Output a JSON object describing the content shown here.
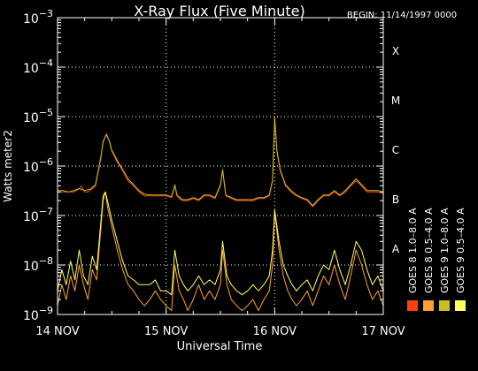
{
  "chart_data": {
    "type": "line",
    "title": "X-Ray Flux (Five Minute)",
    "begin_label": "BEGIN: 11/14/1997 0000",
    "xlabel": "Universal Time",
    "ylabel": "Watts meter2",
    "y_scale": "log",
    "ylim": [
      1e-09,
      0.001
    ],
    "xlim": [
      0,
      3
    ],
    "x_ticks": [
      {
        "value": 0,
        "label": "14 NOV"
      },
      {
        "value": 1,
        "label": "15 NOV"
      },
      {
        "value": 2,
        "label": "16 NOV"
      },
      {
        "value": 3,
        "label": "17 NOV"
      }
    ],
    "y_ticks": [
      {
        "exponent": -9,
        "base": "10",
        "sup": "−9"
      },
      {
        "exponent": -8,
        "base": "10",
        "sup": "−8"
      },
      {
        "exponent": -7,
        "base": "10",
        "sup": "−7"
      },
      {
        "exponent": -6,
        "base": "10",
        "sup": "−6"
      },
      {
        "exponent": -5,
        "base": "10",
        "sup": "−5"
      },
      {
        "exponent": -4,
        "base": "10",
        "sup": "−4"
      },
      {
        "exponent": -3,
        "base": "10",
        "sup": "−3"
      }
    ],
    "flare_classes": [
      {
        "label": "A",
        "exponent": -8
      },
      {
        "label": "B",
        "exponent": -7
      },
      {
        "label": "C",
        "exponent": -6
      },
      {
        "label": "M",
        "exponent": -5
      },
      {
        "label": "X",
        "exponent": -4
      }
    ],
    "grid": true,
    "legend_position": "right",
    "series": [
      {
        "name": "GOES 8 1.0–8.0 A",
        "color": "#ff4010",
        "x": [
          0.0,
          0.05,
          0.1,
          0.15,
          0.2,
          0.22,
          0.25,
          0.28,
          0.3,
          0.35,
          0.4,
          0.42,
          0.45,
          0.48,
          0.5,
          0.55,
          0.6,
          0.65,
          0.7,
          0.75,
          0.8,
          0.85,
          0.9,
          0.95,
          1.0,
          1.05,
          1.08,
          1.1,
          1.12,
          1.15,
          1.2,
          1.25,
          1.3,
          1.35,
          1.4,
          1.45,
          1.5,
          1.52,
          1.55,
          1.6,
          1.65,
          1.7,
          1.75,
          1.8,
          1.85,
          1.9,
          1.95,
          1.98,
          2.0,
          2.02,
          2.05,
          2.1,
          2.15,
          2.2,
          2.25,
          2.3,
          2.35,
          2.4,
          2.45,
          2.5,
          2.55,
          2.6,
          2.65,
          2.7,
          2.75,
          2.8,
          2.85,
          2.9,
          2.95,
          3.0
        ],
        "y": [
          3e-07,
          3e-07,
          3e-07,
          3e-07,
          3.5e-07,
          4e-07,
          3e-07,
          3e-07,
          3.2e-07,
          4e-07,
          1.5e-06,
          3e-06,
          4.5e-06,
          3e-06,
          2e-06,
          1.2e-06,
          8e-07,
          5e-07,
          4e-07,
          3e-07,
          2.5e-07,
          2.5e-07,
          2.5e-07,
          2.5e-07,
          2.5e-07,
          2.3e-07,
          4e-07,
          2.5e-07,
          2.2e-07,
          2e-07,
          2e-07,
          2.2e-07,
          2e-07,
          2.5e-07,
          2.5e-07,
          2.2e-07,
          4e-07,
          8e-07,
          2.5e-07,
          2.2e-07,
          2e-07,
          2e-07,
          2e-07,
          2e-07,
          2.2e-07,
          2.2e-07,
          2.5e-07,
          5e-07,
          1e-05,
          2e-06,
          8e-07,
          4e-07,
          3e-07,
          2.5e-07,
          2.2e-07,
          2e-07,
          1.5e-07,
          2e-07,
          2.5e-07,
          2.5e-07,
          3e-07,
          2.5e-07,
          3e-07,
          4e-07,
          5e-07,
          4e-07,
          3e-07,
          3e-07,
          3e-07,
          2.8e-07
        ]
      },
      {
        "name": "GOES 8 0.5–4.0 A",
        "color": "#ffa030",
        "x": [
          0.0,
          0.04,
          0.08,
          0.12,
          0.16,
          0.2,
          0.24,
          0.28,
          0.32,
          0.36,
          0.4,
          0.42,
          0.44,
          0.46,
          0.5,
          0.55,
          0.6,
          0.65,
          0.7,
          0.75,
          0.8,
          0.85,
          0.9,
          0.95,
          1.0,
          1.05,
          1.08,
          1.12,
          1.16,
          1.2,
          1.25,
          1.3,
          1.35,
          1.4,
          1.45,
          1.5,
          1.52,
          1.56,
          1.6,
          1.65,
          1.7,
          1.75,
          1.8,
          1.85,
          1.9,
          1.95,
          1.98,
          2.0,
          2.04,
          2.08,
          2.12,
          2.16,
          2.2,
          2.25,
          2.3,
          2.35,
          2.4,
          2.45,
          2.5,
          2.55,
          2.6,
          2.65,
          2.7,
          2.75,
          2.8,
          2.85,
          2.9,
          2.95,
          3.0
        ],
        "y": [
          1.5e-09,
          4e-09,
          2e-09,
          6e-09,
          3e-09,
          1e-08,
          4e-09,
          2e-09,
          8e-09,
          5e-09,
          6e-08,
          2e-07,
          3e-07,
          1.5e-07,
          6e-08,
          2e-08,
          8e-09,
          4e-09,
          3e-09,
          2e-09,
          1.5e-09,
          2e-09,
          3e-09,
          2e-09,
          1.5e-09,
          1.2e-09,
          1e-08,
          3e-09,
          2e-09,
          1.2e-09,
          2e-09,
          4e-09,
          2e-09,
          3e-09,
          2e-09,
          4e-09,
          2e-08,
          4e-09,
          2e-09,
          1.5e-09,
          1.2e-09,
          1.5e-09,
          2e-09,
          1.2e-09,
          2e-09,
          3e-09,
          1e-08,
          1.2e-07,
          2e-08,
          6e-09,
          3e-09,
          2e-09,
          1.5e-09,
          2e-09,
          3e-09,
          1.5e-09,
          3e-09,
          6e-09,
          4e-09,
          1e-08,
          4e-09,
          2e-09,
          6e-09,
          2e-08,
          1e-08,
          4e-09,
          2e-09,
          3e-09,
          1.5e-09
        ]
      },
      {
        "name": "GOES 9 1.0–8.0 A",
        "color": "#c8c020",
        "x": [
          0.0,
          0.05,
          0.1,
          0.15,
          0.2,
          0.25,
          0.3,
          0.35,
          0.4,
          0.42,
          0.45,
          0.48,
          0.5,
          0.55,
          0.6,
          0.65,
          0.7,
          0.75,
          0.8,
          0.85,
          0.9,
          0.95,
          1.0,
          1.05,
          1.08,
          1.1,
          1.15,
          1.2,
          1.25,
          1.3,
          1.35,
          1.4,
          1.45,
          1.5,
          1.52,
          1.55,
          1.6,
          1.65,
          1.7,
          1.75,
          1.8,
          1.85,
          1.9,
          1.95,
          1.98,
          2.0,
          2.02,
          2.05,
          2.1,
          2.15,
          2.2,
          2.25,
          2.3,
          2.35,
          2.4,
          2.45,
          2.5,
          2.55,
          2.6,
          2.65,
          2.7,
          2.75,
          2.8,
          2.85,
          2.9,
          2.95,
          3.0
        ],
        "y": [
          3.2e-07,
          3.2e-07,
          3e-07,
          3.2e-07,
          3.5e-07,
          3.2e-07,
          3.4e-07,
          4.2e-07,
          1.6e-06,
          3.2e-06,
          4.3e-06,
          3.1e-06,
          2.1e-06,
          1.3e-06,
          8.5e-07,
          5.5e-07,
          4.2e-07,
          3.2e-07,
          2.7e-07,
          2.6e-07,
          2.6e-07,
          2.6e-07,
          2.6e-07,
          2.4e-07,
          4.2e-07,
          2.6e-07,
          2.1e-07,
          2.1e-07,
          2.3e-07,
          2.1e-07,
          2.6e-07,
          2.6e-07,
          2.3e-07,
          4.2e-07,
          8.5e-07,
          2.6e-07,
          2.3e-07,
          2.1e-07,
          2.1e-07,
          2.1e-07,
          2.1e-07,
          2.3e-07,
          2.3e-07,
          2.6e-07,
          5.2e-07,
          9.5e-06,
          2.1e-06,
          8.5e-07,
          4.2e-07,
          3.2e-07,
          2.6e-07,
          2.3e-07,
          2.1e-07,
          1.6e-07,
          2.1e-07,
          2.6e-07,
          2.6e-07,
          3.2e-07,
          2.6e-07,
          3.2e-07,
          4.2e-07,
          5.5e-07,
          4.2e-07,
          3.2e-07,
          3.2e-07,
          3.2e-07,
          3e-07
        ]
      },
      {
        "name": "GOES 9 0.5–4.0 A",
        "color": "#ffff60",
        "x": [
          0.0,
          0.04,
          0.08,
          0.12,
          0.16,
          0.2,
          0.24,
          0.28,
          0.32,
          0.36,
          0.4,
          0.42,
          0.44,
          0.46,
          0.5,
          0.55,
          0.6,
          0.65,
          0.7,
          0.75,
          0.8,
          0.85,
          0.9,
          0.95,
          1.0,
          1.05,
          1.08,
          1.12,
          1.16,
          1.2,
          1.25,
          1.3,
          1.35,
          1.4,
          1.45,
          1.5,
          1.52,
          1.56,
          1.6,
          1.65,
          1.7,
          1.75,
          1.8,
          1.85,
          1.9,
          1.95,
          1.98,
          2.0,
          2.04,
          2.08,
          2.12,
          2.16,
          2.2,
          2.25,
          2.3,
          2.35,
          2.4,
          2.45,
          2.5,
          2.55,
          2.6,
          2.65,
          2.7,
          2.75,
          2.8,
          2.85,
          2.9,
          2.95,
          3.0
        ],
        "y": [
          3e-09,
          8e-09,
          4e-09,
          1.2e-08,
          5e-09,
          2e-08,
          6e-09,
          4e-09,
          1.5e-08,
          8e-09,
          8e-08,
          2.5e-07,
          3e-07,
          2e-07,
          8e-08,
          3e-08,
          1.2e-08,
          6e-09,
          5e-09,
          4e-09,
          4e-09,
          4e-09,
          5e-09,
          3e-09,
          3e-09,
          2.5e-09,
          2e-08,
          6e-09,
          4e-09,
          3e-09,
          4e-09,
          6e-09,
          4e-09,
          5e-09,
          4e-09,
          8e-09,
          3e-08,
          6e-09,
          4e-09,
          3e-09,
          2.5e-09,
          3e-09,
          4e-09,
          3e-09,
          4e-09,
          6e-09,
          2e-08,
          1.3e-07,
          3e-08,
          1e-08,
          6e-09,
          4e-09,
          3e-09,
          4e-09,
          5e-09,
          3e-09,
          6e-09,
          1e-08,
          8e-09,
          2e-08,
          8e-09,
          4e-09,
          1e-08,
          3e-08,
          2e-08,
          8e-09,
          4e-09,
          6e-09,
          3e-09
        ]
      }
    ]
  }
}
